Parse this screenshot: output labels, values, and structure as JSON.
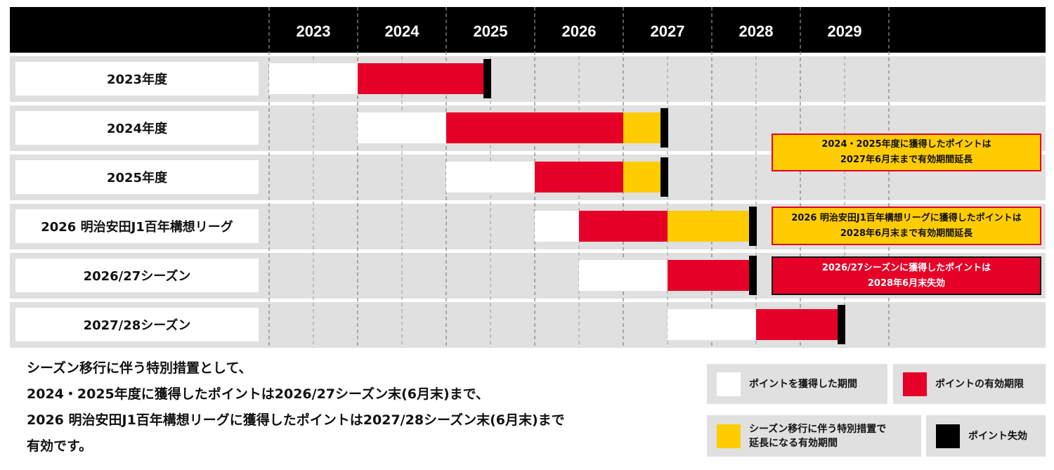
{
  "colors": {
    "earn": "#ffffff",
    "valid": "#e60028",
    "extended": "#ffcc00",
    "expire": "#000000",
    "row_bg": "#e0e0e0",
    "header_bg": "#000000"
  },
  "chart_data": {
    "type": "gantt",
    "years": [
      "2023",
      "2024",
      "2025",
      "2026",
      "2027",
      "2028",
      "2029"
    ],
    "rows": [
      {
        "label": "2023年度",
        "segments": [
          {
            "kind": "earn",
            "start": 2023.0,
            "end": 2024.0
          },
          {
            "kind": "valid",
            "start": 2024.0,
            "end": 2025.5
          }
        ],
        "expire": 2025.5
      },
      {
        "label": "2024年度",
        "segments": [
          {
            "kind": "earn",
            "start": 2024.0,
            "end": 2025.0
          },
          {
            "kind": "valid",
            "start": 2025.0,
            "end": 2027.0
          },
          {
            "kind": "extended",
            "start": 2027.0,
            "end": 2027.5
          }
        ],
        "expire": 2027.5
      },
      {
        "label": "2025年度",
        "segments": [
          {
            "kind": "earn",
            "start": 2025.0,
            "end": 2026.0
          },
          {
            "kind": "valid",
            "start": 2026.0,
            "end": 2027.0
          },
          {
            "kind": "extended",
            "start": 2027.0,
            "end": 2027.5
          }
        ],
        "expire": 2027.5
      },
      {
        "label": "2026 明治安田J1百年構想リーグ",
        "segments": [
          {
            "kind": "earn",
            "start": 2026.0,
            "end": 2026.5
          },
          {
            "kind": "valid",
            "start": 2026.5,
            "end": 2027.5
          },
          {
            "kind": "extended",
            "start": 2027.5,
            "end": 2028.5
          }
        ],
        "expire": 2028.5
      },
      {
        "label": "2026/27シーズン",
        "segments": [
          {
            "kind": "earn",
            "start": 2026.5,
            "end": 2027.5
          },
          {
            "kind": "valid",
            "start": 2027.5,
            "end": 2028.5
          }
        ],
        "expire": 2028.5
      },
      {
        "label": "2027/28シーズン",
        "segments": [
          {
            "kind": "earn",
            "start": 2027.5,
            "end": 2028.5
          },
          {
            "kind": "valid",
            "start": 2028.5,
            "end": 2029.5
          }
        ],
        "expire": 2029.5
      }
    ]
  },
  "notes": [
    {
      "line1": "2024・2025年度に獲得したポイントは",
      "line2": "2027年6月末まで有効期間延長"
    },
    {
      "line1": "2026 明治安田J1百年構想リーグに獲得したポイントは",
      "line2": "2028年6月末まで有効期間延長"
    },
    {
      "line1": "2026/27シーズンに獲得したポイントは",
      "line2": "2028年6月末失効"
    }
  ],
  "summary": {
    "line1": "シーズン移行に伴う特別措置として、",
    "line2": "2024・2025年度に獲得したポイントは2026/27シーズン末(6月末)まで、",
    "line3": "2026 明治安田J1百年構想リーグに獲得したポイントは2027/28シーズン末(6月末)まで",
    "line4": "有効です。"
  },
  "legend": {
    "earn": "ポイントを獲得した期間",
    "valid": "ポイントの有効期限",
    "extended_line1": "シーズン移行に伴う特別措置で",
    "extended_line2": "延長になる有効期間",
    "expire": "ポイント失効"
  }
}
